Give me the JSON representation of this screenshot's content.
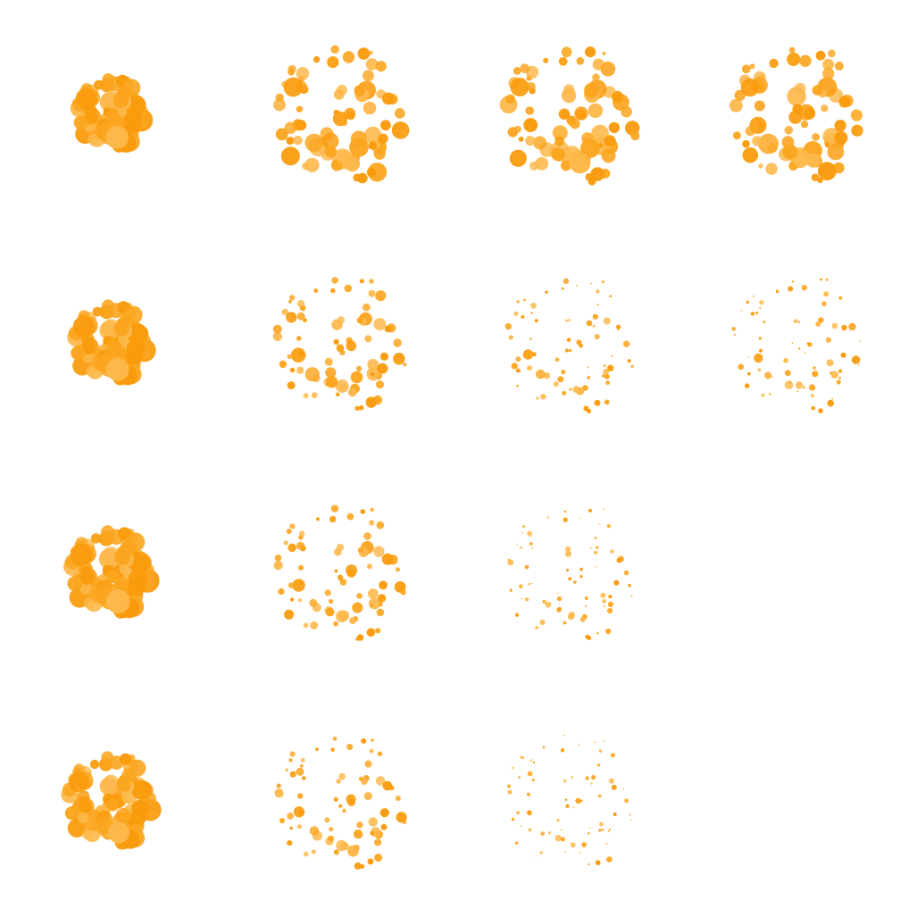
{
  "sprite_sheet": {
    "description_visible_text": "",
    "grid": {
      "columns": 4,
      "rows": 4
    },
    "colors": {
      "background": "#ffffff",
      "particle_dark": "#F99B0C",
      "particle_mid": "#FBA51F",
      "particle_light": "#FDB84A"
    },
    "effect": "particle-burst",
    "frames": [
      {
        "row": 0,
        "col": 0,
        "empty": false
      },
      {
        "row": 0,
        "col": 1,
        "empty": false
      },
      {
        "row": 0,
        "col": 2,
        "empty": false
      },
      {
        "row": 0,
        "col": 3,
        "empty": false
      },
      {
        "row": 1,
        "col": 0,
        "empty": false
      },
      {
        "row": 1,
        "col": 1,
        "empty": false
      },
      {
        "row": 1,
        "col": 2,
        "empty": false
      },
      {
        "row": 1,
        "col": 3,
        "empty": false
      },
      {
        "row": 2,
        "col": 0,
        "empty": false
      },
      {
        "row": 2,
        "col": 1,
        "empty": false
      },
      {
        "row": 2,
        "col": 2,
        "empty": false
      },
      {
        "row": 2,
        "col": 3,
        "empty": true
      },
      {
        "row": 3,
        "col": 0,
        "empty": false
      },
      {
        "row": 3,
        "col": 1,
        "empty": false
      },
      {
        "row": 3,
        "col": 2,
        "empty": false
      },
      {
        "row": 3,
        "col": 3,
        "empty": true
      }
    ]
  }
}
